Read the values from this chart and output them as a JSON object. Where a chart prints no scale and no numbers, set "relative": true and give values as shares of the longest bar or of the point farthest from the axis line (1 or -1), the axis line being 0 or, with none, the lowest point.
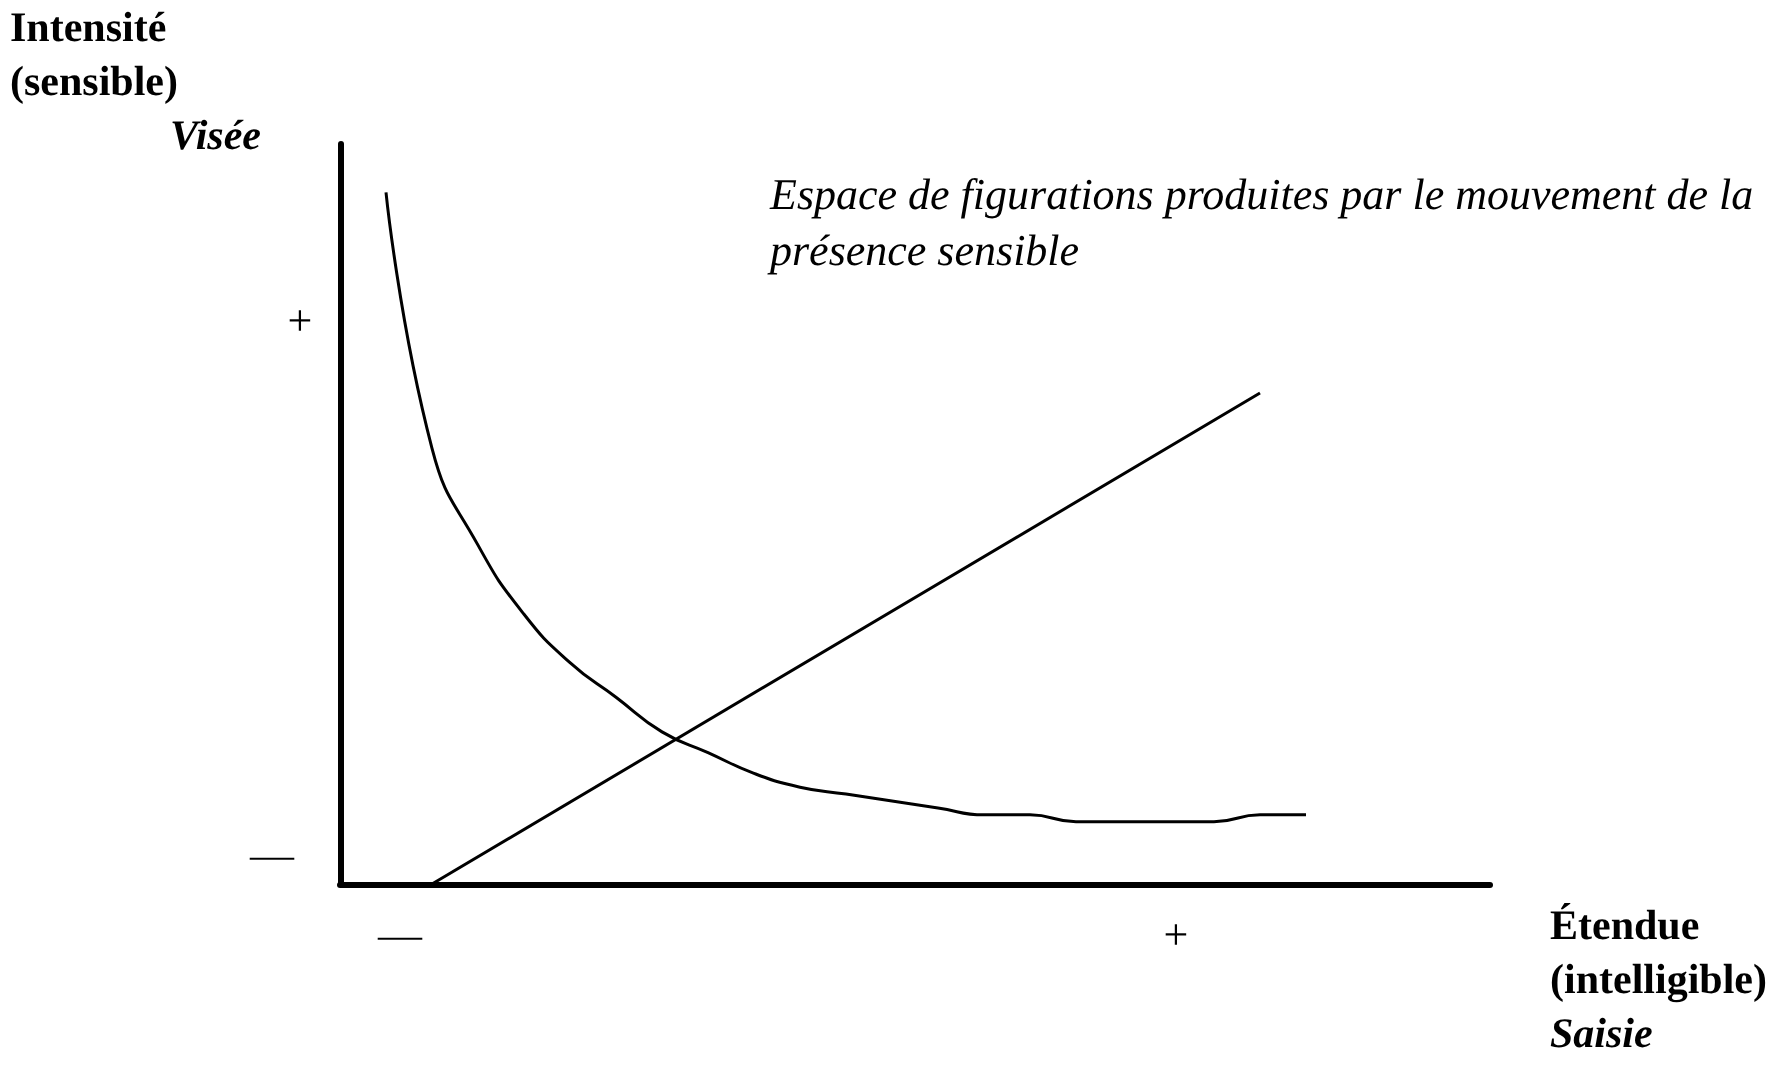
{
  "chart_data": {
    "type": "line",
    "relative": true,
    "xlabel": "Étendue\n(intelligible)\nSaisie",
    "ylabel": "Intensité\n(sensible)\nVisée",
    "annotations": [
      "Espace de figurations produites par le mouvement de la présence sensible",
      "+",
      "—",
      "—",
      "+"
    ],
    "categories": [
      null,
      null,
      null,
      null,
      null,
      null,
      null,
      null,
      null,
      null,
      null,
      null,
      null,
      null,
      null,
      null,
      null,
      null,
      null,
      null,
      null,
      null,
      null,
      null,
      null,
      null
    ],
    "series": [
      {
        "color": "#000000",
        "values": [
          null,
          1,
          0.63,
          0.49,
          0.39,
          0.32,
          0.27,
          0.22,
          0.19,
          0.16,
          0.14,
          0.13,
          0.12,
          0.11,
          0.1,
          0.1,
          0.09,
          0.09,
          0.09,
          0.09,
          0.1,
          0.1,
          null,
          null,
          null,
          null
        ]
      },
      {
        "color": "#000000",
        "values": [
          null,
          null,
          0,
          null,
          null,
          null,
          null,
          null,
          null,
          null,
          null,
          null,
          null,
          null,
          null,
          null,
          null,
          null,
          null,
          null,
          0.71,
          null,
          null,
          null,
          null,
          null
        ]
      }
    ],
    "marker": "none",
    "line_style": "solid"
  }
}
